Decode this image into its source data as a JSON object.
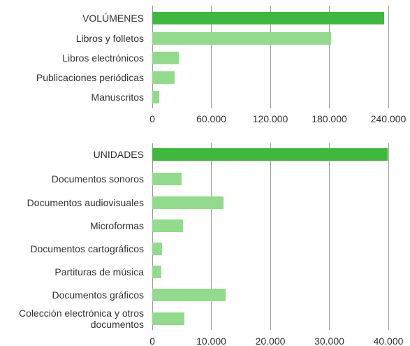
{
  "chart_data": [
    {
      "type": "bar",
      "orientation": "horizontal",
      "categories": [
        "VOLÚMENES",
        "Libros y folletos",
        "Libros electrónicos",
        "Publicaciones periódicas",
        "Manuscritos"
      ],
      "values": [
        236000,
        182000,
        27000,
        22700,
        7100
      ],
      "colors": [
        "#3fb83f",
        "#93db8c",
        "#93db8c",
        "#93db8c",
        "#93db8c"
      ],
      "xlim": [
        0,
        240000
      ],
      "xticks": [
        0,
        {
          "value": 60000,
          "label": "60.000"
        },
        {
          "value": 120000,
          "label": "120.000"
        },
        {
          "value": 180000,
          "label": "180.000"
        },
        {
          "value": 240000,
          "label": "240.000"
        }
      ],
      "grid": true
    },
    {
      "type": "bar",
      "orientation": "horizontal",
      "categories": [
        "UNIDADES",
        "Documentos sonoros",
        "Documentos audiovisuales",
        "Microformas",
        "Documentos cartográficos",
        "Partituras de música",
        "Documentos gráficos",
        "Colección electrónica y otros documentos"
      ],
      "values": [
        39900,
        5000,
        12100,
        5200,
        1650,
        1550,
        12400,
        5450
      ],
      "colors": [
        "#3fb83f",
        "#93db8c",
        "#93db8c",
        "#93db8c",
        "#93db8c",
        "#93db8c",
        "#93db8c",
        "#93db8c"
      ],
      "xlim": [
        0,
        40000
      ],
      "xticks": [
        0,
        {
          "value": 10000,
          "label": "10.000"
        },
        {
          "value": 20000,
          "label": "20.000"
        },
        {
          "value": 30000,
          "label": "30.000"
        },
        {
          "value": 40000,
          "label": "40.000"
        }
      ],
      "grid": true
    }
  ]
}
